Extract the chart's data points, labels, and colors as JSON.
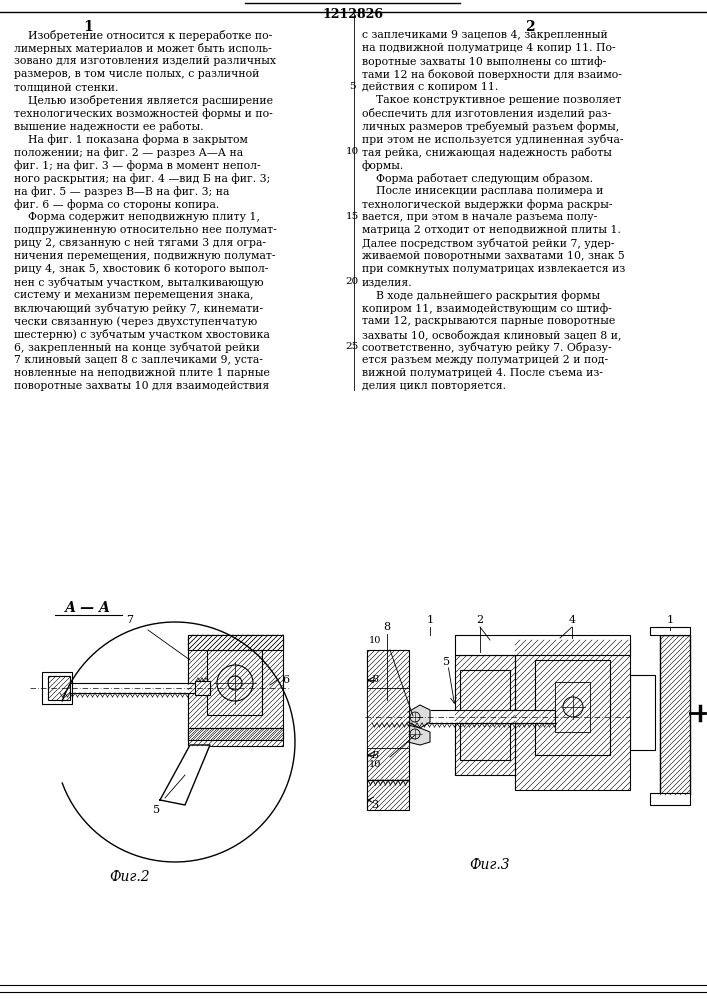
{
  "patent_number": "1212826",
  "col1_number": "1",
  "col2_number": "2",
  "col1_text_lines": [
    "    Изобретение относится к переработке по-",
    "лимерных материалов и может быть исполь-",
    "зовано для изготовления изделий различных",
    "размеров, в том числе полых, с различной",
    "толщиной стенки.",
    "    Целью изобретения является расширение",
    "технологических возможностей формы и по-",
    "вышение надежности ее работы.",
    "    На фиг. 1 показана форма в закрытом",
    "положении; на фиг. 2 — разрез А—А на",
    "фиг. 1; на фиг. 3 — форма в момент непол-",
    "ного раскрытия; на фиг. 4 —вид Б на фиг. 3;",
    "на фиг. 5 — разрез В—В на фиг. 3; на",
    "фиг. 6 — форма со стороны копира.",
    "    Форма содержит неподвижную плиту 1,",
    "подпружиненную относительно нее полумат-",
    "рицу 2, связанную с ней тягами 3 для огра-",
    "ничения перемещения, подвижную полумат-",
    "рицу 4, знак 5, хвостовик 6 которого выпол-",
    "нен с зубчатым участком, выталкивающую",
    "систему и механизм перемещения знака,",
    "включающий зубчатую рейку 7, кинемати-",
    "чески связанную (через двухступенчатую",
    "шестерню) с зубчатым участком хвостовика",
    "6, закрепленный на конце зубчатой рейки",
    "7 клиновый зацеп 8 с заплечиками 9, уста-",
    "новленные на неподвижной плите 1 парные",
    "поворотные захваты 10 для взаимодействия"
  ],
  "col2_text_lines": [
    "с заплечиками 9 зацепов 4, закрепленный",
    "на подвижной полуматрице 4 копир 11. По-",
    "воротные захваты 10 выполнены со штиф-",
    "тами 12 на боковой поверхности для взаимо-",
    "действия с копиром 11.",
    "    Такое конструктивное решение позволяет",
    "обеспечить для изготовления изделий раз-",
    "личных размеров требуемый разъем формы,",
    "при этом не используется удлиненная зубча-",
    "тая рейка, снижающая надежность работы",
    "формы.",
    "    Форма работает следующим образом.",
    "    После инисекции расплава полимера и",
    "технологической выдержки форма раскры-",
    "вается, при этом в начале разъема полу-",
    "матрица 2 отходит от неподвижной плиты 1.",
    "Далее посредством зубчатой рейки 7, удер-",
    "живаемой поворотными захватами 10, знак 5",
    "при сомкнутых полуматрицах извлекается из",
    "изделия.",
    "    В ходе дальнейшего раскрытия формы",
    "копиром 11, взаимодействующим со штиф-",
    "тами 12, раскрываются парные поворотные",
    "захваты 10, освобождая клиновый зацеп 8 и,",
    "соответственно, зубчатую рейку 7. Образу-",
    "ется разъем между полуматрицей 2 и под-",
    "вижной полуматрицей 4. После съема из-",
    "делия цикл повторяется."
  ],
  "line_numbers": [
    5,
    10,
    15,
    20,
    25
  ],
  "fig2_label": "А — А",
  "fig2_caption": "Фиг.2",
  "fig3_caption": "Фиг.3",
  "bg_color": "#ffffff",
  "text_color": "#000000"
}
